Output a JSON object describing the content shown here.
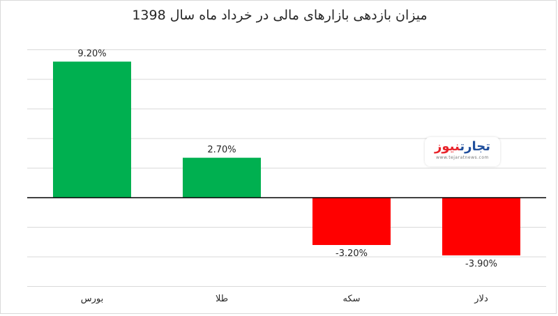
{
  "chart_data": {
    "type": "bar",
    "title": "میزان بازدهی بازارهای مالی در خرداد ماه سال 1398",
    "categories": [
      "بورس",
      "طلا",
      "سکه",
      "دلار"
    ],
    "values": [
      9.2,
      2.7,
      -3.2,
      -3.9
    ],
    "value_labels": [
      "9.20%",
      "2.70%",
      "-3.20%",
      "-3.90%"
    ],
    "ylim": [
      -3,
      5
    ],
    "grid": true,
    "legend": "none",
    "colors": {
      "positive": "#00b050",
      "negative": "#ff0000",
      "grid": "#d9d9d9",
      "axis": "#000000"
    }
  },
  "watermark": {
    "brand_part1": "تجارت",
    "brand_part2": "نیوز",
    "url": "www.tejaratnews.com"
  }
}
